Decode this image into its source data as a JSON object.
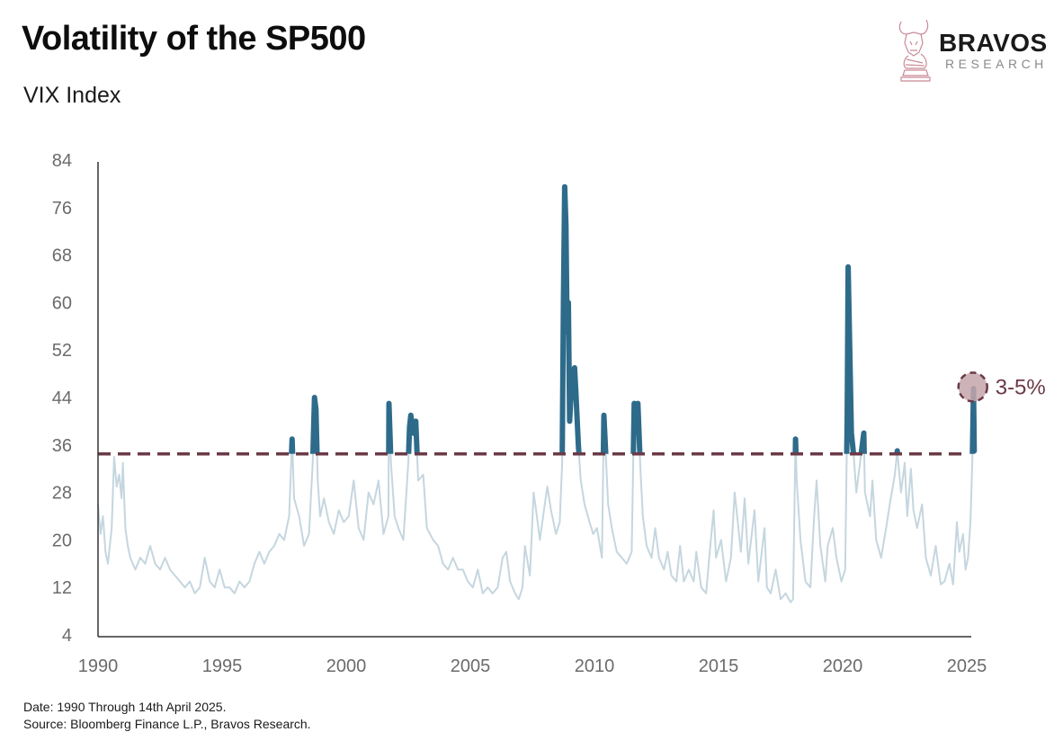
{
  "title": "Volatility of the SP500",
  "subtitle": "VIX Index",
  "logo": {
    "name": "BRAVOS",
    "sub": "RESEARCH",
    "icon": "bull-chess-knight-icon"
  },
  "footer": {
    "date_line": "Date: 1990 Through 14th April 2025.",
    "source_line": "Source: Bloomberg Finance L.P., Bravos Research."
  },
  "colors": {
    "below": "#c5d6df",
    "above": "#2e6b8a",
    "threshold": "#6b3a47",
    "marker_fill": "#c4a6ab",
    "annotation": "#6b3a47",
    "axis": "#333333"
  },
  "chart_data": {
    "type": "line",
    "title": "Volatility of the SP500",
    "subtitle": "VIX Index",
    "xlabel": "",
    "ylabel": "",
    "xlim": [
      1990,
      2025
    ],
    "ylim": [
      4,
      84
    ],
    "x_ticks": [
      "1990",
      "1995",
      "2000",
      "2005",
      "2010",
      "2015",
      "2020",
      "2025"
    ],
    "y_ticks": [
      "4",
      "12",
      "20",
      "28",
      "36",
      "44",
      "52",
      "60",
      "68",
      "76",
      "84"
    ],
    "grid": false,
    "threshold": 34.5,
    "annotation": {
      "label": "3-5%",
      "x": 2025.28,
      "y": 45.3
    },
    "series": [
      {
        "name": "VIX",
        "points": [
          [
            1990.0,
            26
          ],
          [
            1990.1,
            21
          ],
          [
            1990.2,
            24
          ],
          [
            1990.3,
            18
          ],
          [
            1990.4,
            16
          ],
          [
            1990.55,
            22
          ],
          [
            1990.65,
            34
          ],
          [
            1990.75,
            29
          ],
          [
            1990.85,
            31
          ],
          [
            1990.95,
            27
          ],
          [
            1991.0,
            33
          ],
          [
            1991.1,
            22
          ],
          [
            1991.2,
            19
          ],
          [
            1991.3,
            17
          ],
          [
            1991.5,
            15
          ],
          [
            1991.7,
            17
          ],
          [
            1991.9,
            16
          ],
          [
            1992.1,
            19
          ],
          [
            1992.3,
            16
          ],
          [
            1992.5,
            15
          ],
          [
            1992.7,
            17
          ],
          [
            1992.9,
            15
          ],
          [
            1993.1,
            14
          ],
          [
            1993.3,
            13
          ],
          [
            1993.5,
            12
          ],
          [
            1993.7,
            13
          ],
          [
            1993.9,
            11
          ],
          [
            1994.1,
            12
          ],
          [
            1994.3,
            17
          ],
          [
            1994.5,
            13
          ],
          [
            1994.7,
            12
          ],
          [
            1994.9,
            15
          ],
          [
            1995.1,
            12
          ],
          [
            1995.3,
            12
          ],
          [
            1995.5,
            11
          ],
          [
            1995.7,
            13
          ],
          [
            1995.9,
            12
          ],
          [
            1996.1,
            13
          ],
          [
            1996.3,
            16
          ],
          [
            1996.5,
            18
          ],
          [
            1996.7,
            16
          ],
          [
            1996.9,
            18
          ],
          [
            1997.1,
            19
          ],
          [
            1997.3,
            21
          ],
          [
            1997.5,
            20
          ],
          [
            1997.7,
            24
          ],
          [
            1997.82,
            37
          ],
          [
            1997.9,
            27
          ],
          [
            1998.1,
            24
          ],
          [
            1998.3,
            19
          ],
          [
            1998.5,
            21
          ],
          [
            1998.65,
            33
          ],
          [
            1998.72,
            44
          ],
          [
            1998.78,
            42
          ],
          [
            1998.85,
            30
          ],
          [
            1998.95,
            24
          ],
          [
            1999.1,
            27
          ],
          [
            1999.3,
            23
          ],
          [
            1999.5,
            21
          ],
          [
            1999.7,
            25
          ],
          [
            1999.9,
            23
          ],
          [
            2000.1,
            24
          ],
          [
            2000.3,
            30
          ],
          [
            2000.5,
            22
          ],
          [
            2000.7,
            20
          ],
          [
            2000.9,
            28
          ],
          [
            2001.1,
            26
          ],
          [
            2001.3,
            30
          ],
          [
            2001.5,
            21
          ],
          [
            2001.7,
            24
          ],
          [
            2001.72,
            43
          ],
          [
            2001.8,
            33
          ],
          [
            2001.95,
            24
          ],
          [
            2002.1,
            22
          ],
          [
            2002.3,
            20
          ],
          [
            2002.5,
            33
          ],
          [
            2002.55,
            39
          ],
          [
            2002.6,
            41
          ],
          [
            2002.7,
            38
          ],
          [
            2002.8,
            40
          ],
          [
            2002.9,
            30
          ],
          [
            2003.1,
            31
          ],
          [
            2003.25,
            22
          ],
          [
            2003.5,
            20
          ],
          [
            2003.7,
            19
          ],
          [
            2003.9,
            16
          ],
          [
            2004.1,
            15
          ],
          [
            2004.3,
            17
          ],
          [
            2004.5,
            15
          ],
          [
            2004.7,
            15
          ],
          [
            2004.9,
            13
          ],
          [
            2005.1,
            12
          ],
          [
            2005.3,
            15
          ],
          [
            2005.5,
            11
          ],
          [
            2005.7,
            12
          ],
          [
            2005.9,
            11
          ],
          [
            2006.1,
            12
          ],
          [
            2006.3,
            17
          ],
          [
            2006.45,
            18
          ],
          [
            2006.6,
            13
          ],
          [
            2006.8,
            11
          ],
          [
            2006.95,
            10
          ],
          [
            2007.1,
            12
          ],
          [
            2007.2,
            19
          ],
          [
            2007.4,
            14
          ],
          [
            2007.55,
            28
          ],
          [
            2007.65,
            25
          ],
          [
            2007.8,
            20
          ],
          [
            2007.9,
            23
          ],
          [
            2008.1,
            29
          ],
          [
            2008.25,
            25
          ],
          [
            2008.45,
            21
          ],
          [
            2008.6,
            23
          ],
          [
            2008.7,
            33
          ],
          [
            2008.75,
            60
          ],
          [
            2008.8,
            79.5
          ],
          [
            2008.85,
            73
          ],
          [
            2008.9,
            55
          ],
          [
            2008.95,
            60
          ],
          [
            2009.0,
            40
          ],
          [
            2009.1,
            48
          ],
          [
            2009.2,
            49
          ],
          [
            2009.25,
            45
          ],
          [
            2009.35,
            36
          ],
          [
            2009.45,
            30
          ],
          [
            2009.6,
            26
          ],
          [
            2009.8,
            23
          ],
          [
            2009.95,
            21
          ],
          [
            2010.1,
            22
          ],
          [
            2010.3,
            17
          ],
          [
            2010.38,
            41
          ],
          [
            2010.45,
            35
          ],
          [
            2010.55,
            26
          ],
          [
            2010.7,
            22
          ],
          [
            2010.9,
            18
          ],
          [
            2011.1,
            17
          ],
          [
            2011.3,
            16
          ],
          [
            2011.5,
            18
          ],
          [
            2011.6,
            43
          ],
          [
            2011.7,
            40
          ],
          [
            2011.75,
            43
          ],
          [
            2011.85,
            32
          ],
          [
            2011.95,
            24
          ],
          [
            2012.1,
            19
          ],
          [
            2012.3,
            17
          ],
          [
            2012.45,
            22
          ],
          [
            2012.6,
            17
          ],
          [
            2012.8,
            15
          ],
          [
            2012.95,
            18
          ],
          [
            2013.1,
            14
          ],
          [
            2013.3,
            13
          ],
          [
            2013.45,
            19
          ],
          [
            2013.6,
            13
          ],
          [
            2013.8,
            15
          ],
          [
            2014.0,
            13
          ],
          [
            2014.1,
            18
          ],
          [
            2014.3,
            12
          ],
          [
            2014.5,
            11
          ],
          [
            2014.6,
            16
          ],
          [
            2014.8,
            25
          ],
          [
            2014.9,
            17
          ],
          [
            2015.1,
            20
          ],
          [
            2015.3,
            13
          ],
          [
            2015.5,
            17
          ],
          [
            2015.65,
            28
          ],
          [
            2015.75,
            24
          ],
          [
            2015.9,
            18
          ],
          [
            2016.05,
            27
          ],
          [
            2016.2,
            16
          ],
          [
            2016.45,
            25
          ],
          [
            2016.6,
            13
          ],
          [
            2016.85,
            22
          ],
          [
            2016.95,
            12
          ],
          [
            2017.1,
            11
          ],
          [
            2017.3,
            15
          ],
          [
            2017.5,
            10
          ],
          [
            2017.7,
            11
          ],
          [
            2017.9,
            9.5
          ],
          [
            2018.0,
            10
          ],
          [
            2018.1,
            37
          ],
          [
            2018.15,
            30
          ],
          [
            2018.3,
            20
          ],
          [
            2018.5,
            13
          ],
          [
            2018.7,
            12
          ],
          [
            2018.85,
            24
          ],
          [
            2018.95,
            30
          ],
          [
            2019.1,
            19
          ],
          [
            2019.3,
            13
          ],
          [
            2019.4,
            19
          ],
          [
            2019.6,
            22
          ],
          [
            2019.75,
            17
          ],
          [
            2019.95,
            13
          ],
          [
            2020.1,
            15
          ],
          [
            2020.18,
            40
          ],
          [
            2020.22,
            66
          ],
          [
            2020.27,
            55
          ],
          [
            2020.35,
            38
          ],
          [
            2020.45,
            34
          ],
          [
            2020.55,
            28
          ],
          [
            2020.7,
            33
          ],
          [
            2020.85,
            38
          ],
          [
            2020.9,
            28
          ],
          [
            2021.1,
            24
          ],
          [
            2021.2,
            30
          ],
          [
            2021.35,
            20
          ],
          [
            2021.55,
            17
          ],
          [
            2021.75,
            22
          ],
          [
            2021.9,
            26
          ],
          [
            2022.1,
            31
          ],
          [
            2022.2,
            35
          ],
          [
            2022.35,
            28
          ],
          [
            2022.5,
            33
          ],
          [
            2022.6,
            24
          ],
          [
            2022.75,
            32
          ],
          [
            2022.85,
            25
          ],
          [
            2023.0,
            22
          ],
          [
            2023.2,
            26
          ],
          [
            2023.35,
            17
          ],
          [
            2023.55,
            14
          ],
          [
            2023.75,
            19
          ],
          [
            2023.95,
            12.5
          ],
          [
            2024.1,
            13
          ],
          [
            2024.3,
            16
          ],
          [
            2024.45,
            12.5
          ],
          [
            2024.6,
            23
          ],
          [
            2024.7,
            18
          ],
          [
            2024.85,
            21
          ],
          [
            2024.95,
            15
          ],
          [
            2025.05,
            17
          ],
          [
            2025.15,
            23
          ],
          [
            2025.22,
            33
          ],
          [
            2025.27,
            45.5
          ],
          [
            2025.3,
            35
          ]
        ]
      }
    ]
  }
}
